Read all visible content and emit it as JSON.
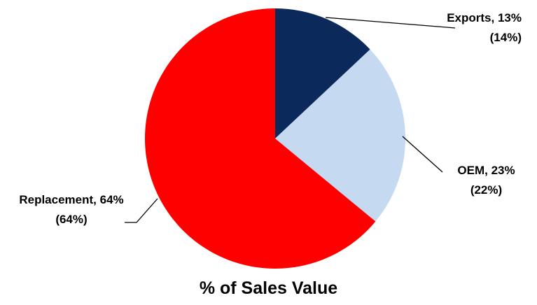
{
  "chart_data": {
    "type": "pie",
    "title": "% of Sales Value",
    "categories": [
      "Exports,",
      "OEM,",
      "Replacement,"
    ],
    "values": [
      13,
      23,
      64
    ],
    "value_labels": [
      "13% (14%)",
      "23% (22%)",
      "64% (64%)"
    ],
    "colors": [
      "#0b2a5b",
      "#c5d9f1",
      "#ff0000"
    ]
  }
}
